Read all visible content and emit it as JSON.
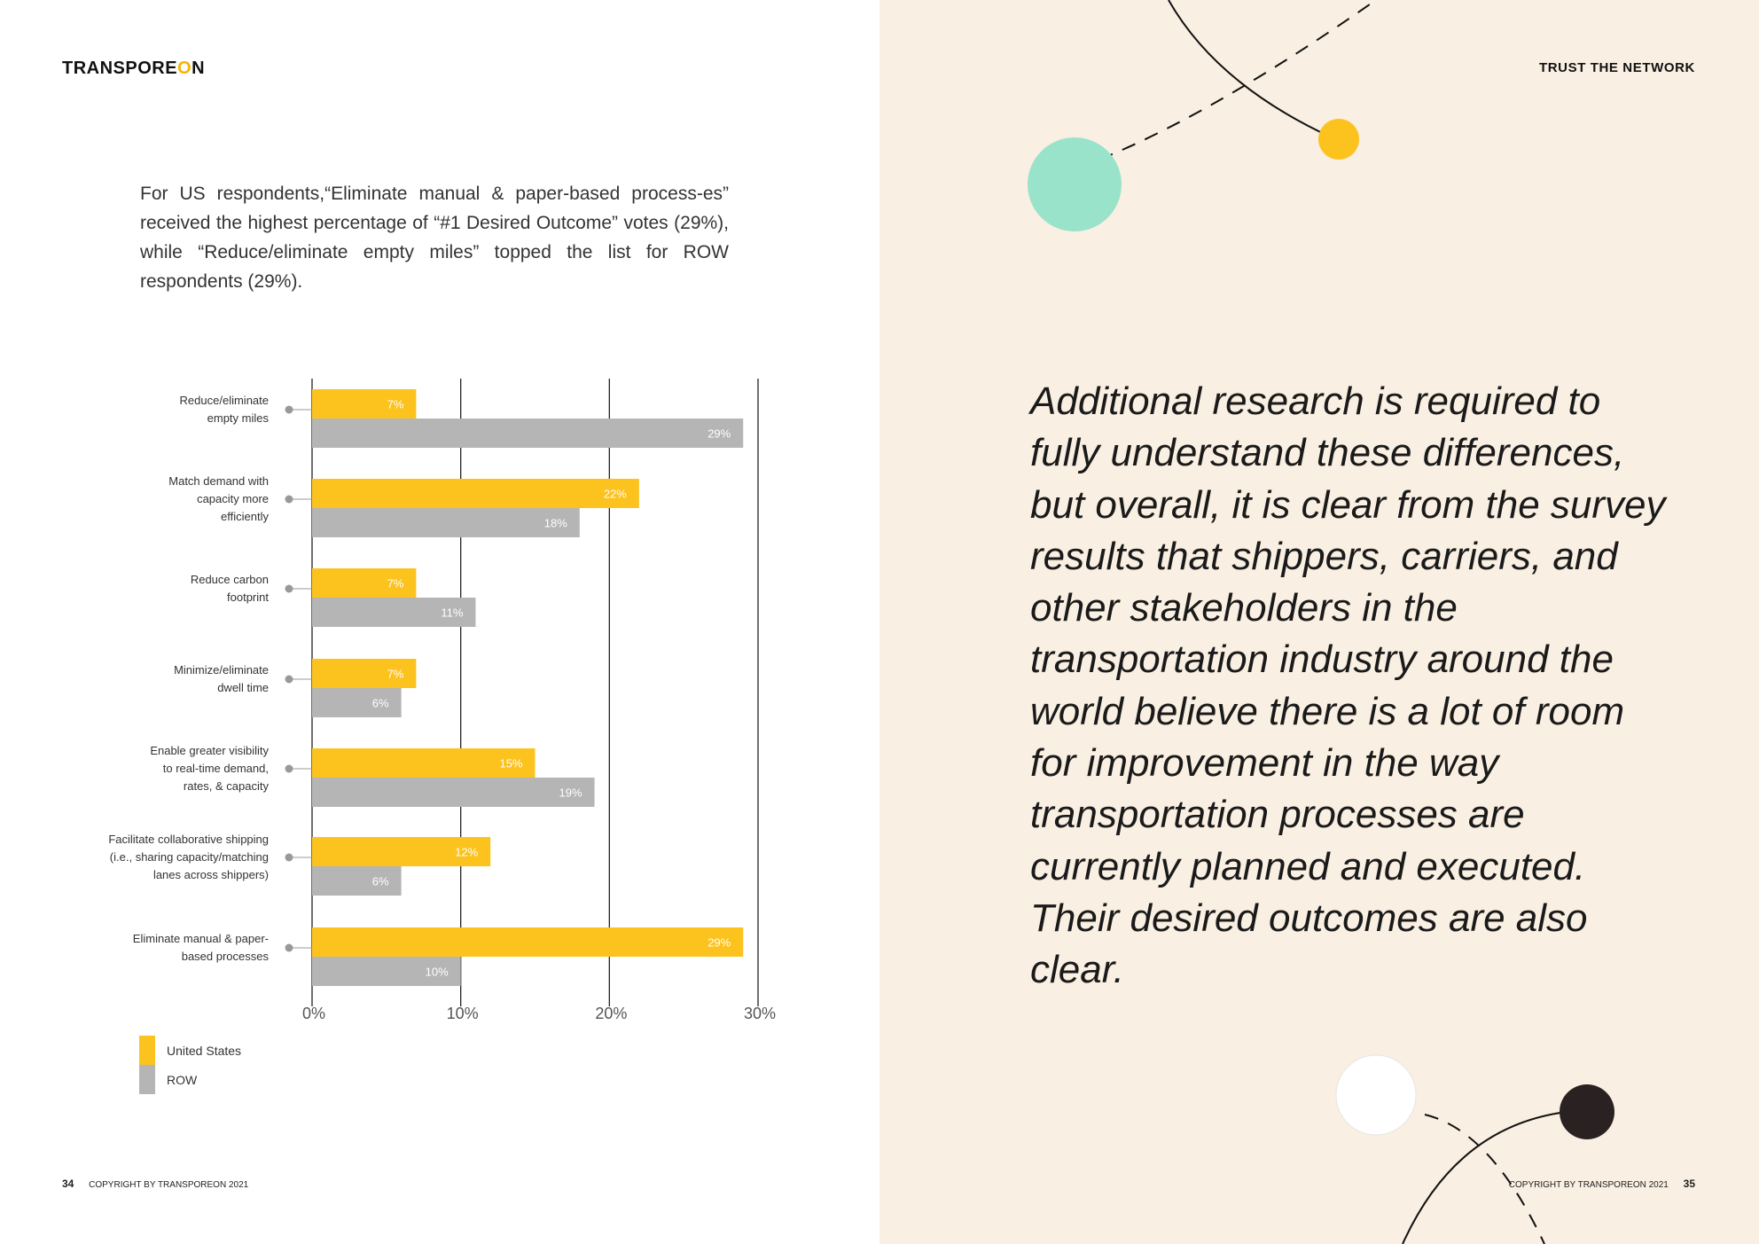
{
  "left_page": {
    "logo": {
      "text_main": "TRANSPORE",
      "text_accent": "O",
      "text_end": "N"
    },
    "intro_text": "For US respondents,“Eliminate manual & paper-based process-es” received the highest percentage of “#1 Desired Outcome” votes (29%), while “Reduce/eliminate empty miles” topped the list for ROW respondents (29%).",
    "footer": {
      "page_number": "34",
      "copyright": "COPYRIGHT BY TRANSPOREON 2021"
    }
  },
  "right_page": {
    "section_title": "TRUST THE NETWORK",
    "quote": "Additional research is required to fully understand these differences, but overall, it is clear from the survey results that shippers, carriers, and other stakeholders in the transportation industry around the world believe there is a lot of room for improvement in the way transportation processes are currently planned and executed. Their desired outcomes are also clear.",
    "footer": {
      "copyright": "COPYRIGHT BY TRANSPOREON 2021",
      "page_number": "35"
    }
  },
  "chart_data": {
    "type": "bar",
    "orientation": "horizontal",
    "title": "",
    "xlabel": "",
    "ylabel": "",
    "xlim": [
      0,
      30
    ],
    "x_ticks": [
      "0%",
      "10%",
      "20%",
      "30%"
    ],
    "grid": true,
    "legend_position": "bottom-left",
    "categories": [
      [
        "Reduce/eliminate",
        "empty miles"
      ],
      [
        "Match demand with",
        "capacity more",
        "efficiently"
      ],
      [
        "Reduce carbon",
        "footprint"
      ],
      [
        "Minimize/eliminate",
        "dwell time"
      ],
      [
        "Enable greater visibility",
        "to real-time demand,",
        "rates, & capacity"
      ],
      [
        "Facilitate collaborative shipping",
        "(i.e., sharing capacity/matching",
        "lanes across shippers)"
      ],
      [
        "Eliminate manual & paper-",
        "based processes"
      ]
    ],
    "series": [
      {
        "name": "United States",
        "color": "#fcc21e",
        "values": [
          7,
          22,
          7,
          7,
          15,
          12,
          29
        ],
        "labels": [
          "7%",
          "22%",
          "7%",
          "7%",
          "15%",
          "12%",
          "29%"
        ]
      },
      {
        "name": "ROW",
        "color": "#b5b5b5",
        "values": [
          29,
          18,
          11,
          6,
          19,
          6,
          10
        ],
        "labels": [
          "29%",
          "18%",
          "11%",
          "6%",
          "19%",
          "6%",
          "10%"
        ]
      }
    ]
  }
}
